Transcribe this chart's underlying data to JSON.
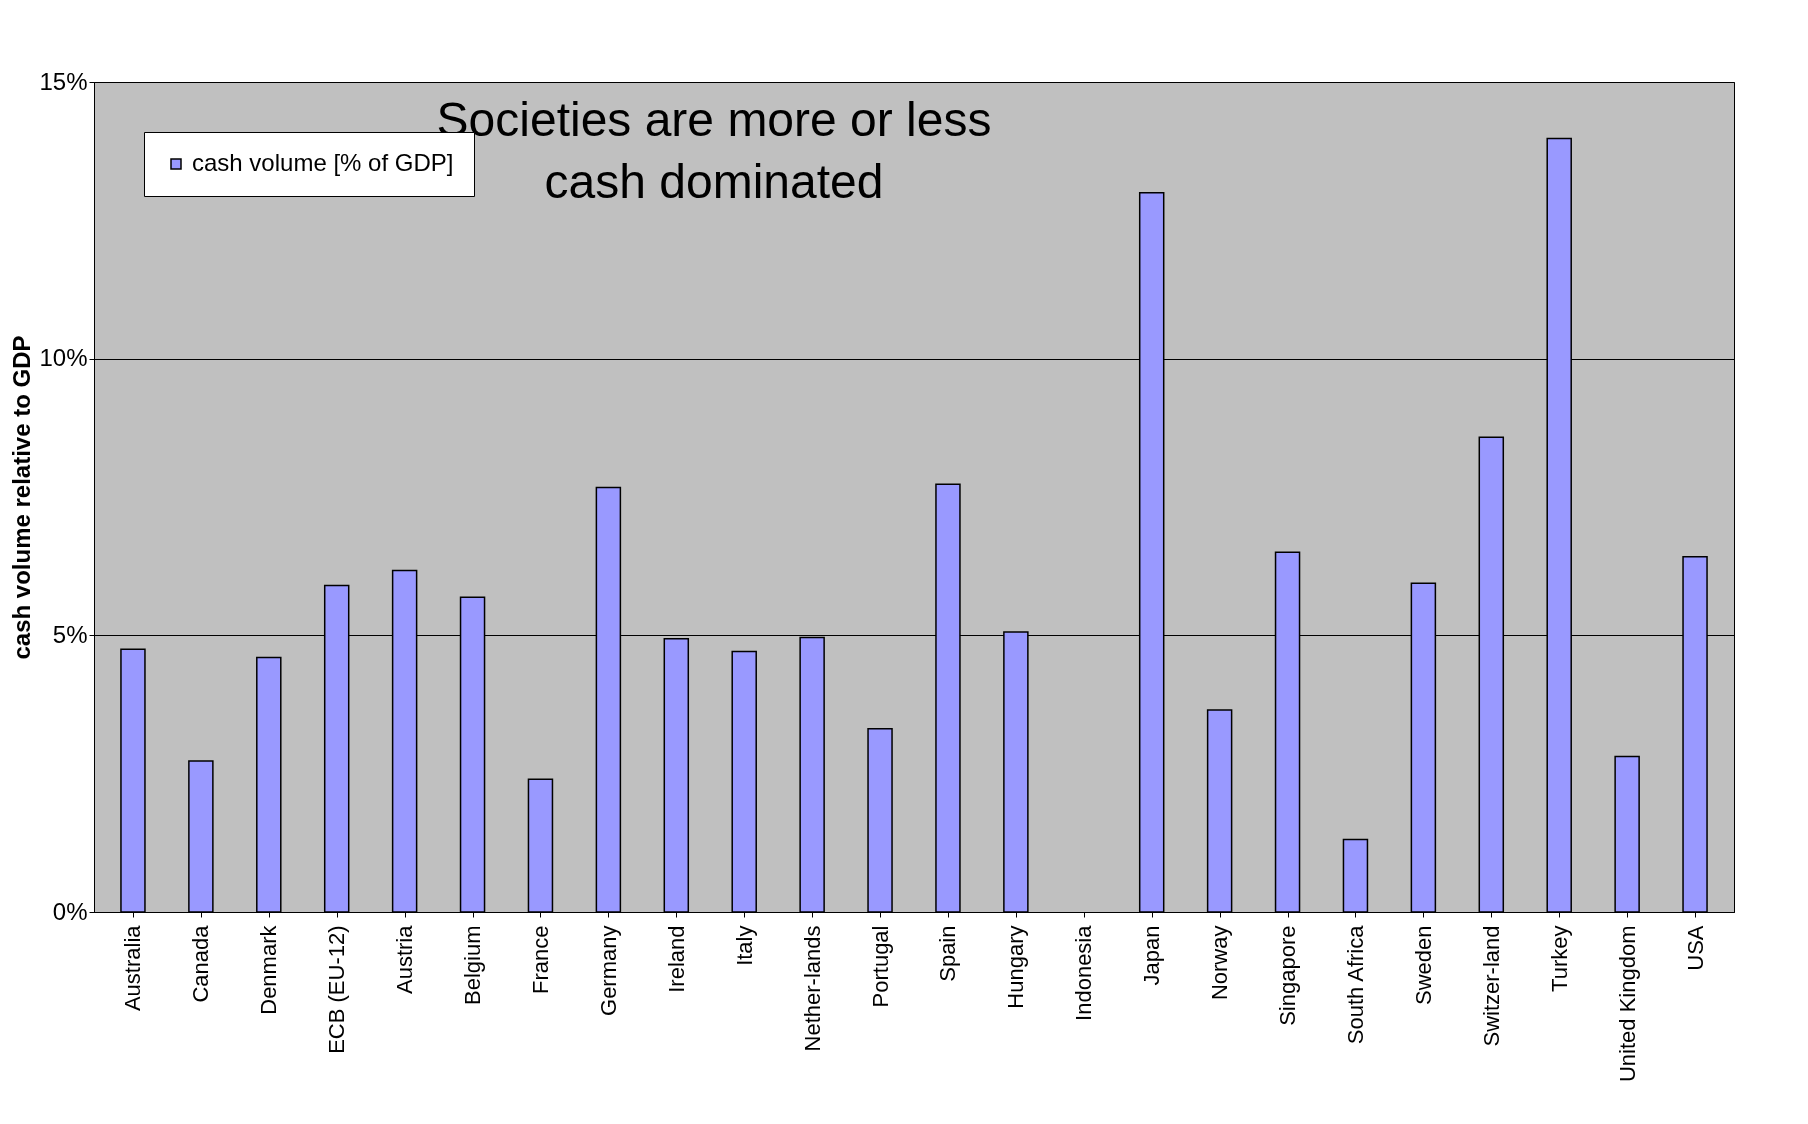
{
  "chart_data": {
    "type": "bar",
    "ylabel": "cash volume relative to GDP",
    "categories": [
      "Australia",
      "Canada",
      "Denmark",
      "ECB (EU-12)",
      "Austria",
      "Belgium",
      "France",
      "Germany",
      "Ireland",
      "Italy",
      "Nether-lands",
      "Portugal",
      "Spain",
      "Hungary",
      "Indonesia",
      "Japan",
      "Norway",
      "Singapore",
      "South Africa",
      "Sweden",
      "Switzer-land",
      "Turkey",
      "United Kingdom",
      "USA"
    ],
    "series": [
      {
        "name": "cash volume [% of GDP]",
        "color": "#9999ff",
        "values": [
          4.75,
          2.73,
          4.6,
          5.9,
          6.17,
          5.69,
          2.4,
          7.67,
          4.94,
          4.71,
          4.96,
          3.31,
          7.73,
          5.06,
          null,
          13.0,
          3.65,
          6.5,
          1.31,
          5.94,
          8.58,
          13.98,
          2.81,
          6.42
        ]
      }
    ],
    "ylim": [
      0,
      15
    ],
    "yticks": [
      {
        "value": 0,
        "label": "0%"
      },
      {
        "value": 5,
        "label": "5%"
      },
      {
        "value": 10,
        "label": "10%"
      },
      {
        "value": 15,
        "label": "15%"
      }
    ],
    "grid": "y",
    "legend": "top left",
    "annotations": [
      "Societies are more or less cash dominated"
    ]
  }
}
